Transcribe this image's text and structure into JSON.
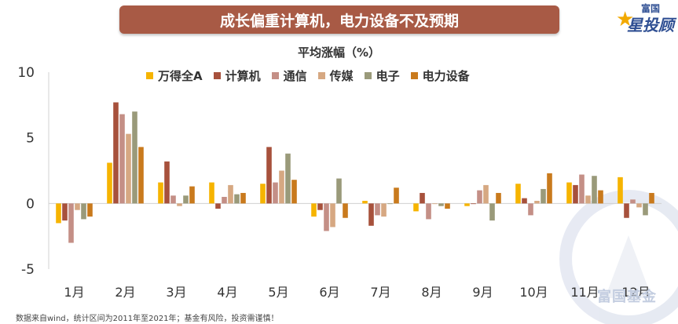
{
  "banner": {
    "title": "成长偏重计算机，电力设备不及预期"
  },
  "logo": {
    "top": "富国",
    "main": "星投顾"
  },
  "footnote": "数据来自wind，统计区间为2011年至2021年；基金有风险，投资需谨慎！",
  "watermark": "富国基金",
  "chart_data": {
    "type": "bar",
    "title": "平均涨幅（%）",
    "categories": [
      "1月",
      "2月",
      "3月",
      "4月",
      "5月",
      "6月",
      "7月",
      "8月",
      "9月",
      "10月",
      "11月",
      "12月"
    ],
    "ylim": [
      -5,
      10
    ],
    "yticks": [
      "10",
      "5",
      "0",
      "-5"
    ],
    "ytick_values": [
      10,
      5,
      0,
      -5
    ],
    "legend_position": "top",
    "grid": false,
    "series": [
      {
        "name": "万得全A",
        "color": "#f6b400",
        "values": [
          -1.5,
          3.1,
          1.6,
          1.6,
          1.5,
          -1.0,
          0.2,
          -0.6,
          -0.2,
          1.5,
          1.6,
          2.0
        ]
      },
      {
        "name": "计算机",
        "color": "#a7513c",
        "values": [
          -1.3,
          7.7,
          3.2,
          -0.4,
          4.3,
          -0.5,
          -1.7,
          0.8,
          0.0,
          0.4,
          1.4,
          -1.1
        ]
      },
      {
        "name": "通信",
        "color": "#c48f86",
        "values": [
          -3.0,
          6.8,
          0.6,
          0.5,
          1.6,
          -2.1,
          -0.9,
          -1.2,
          1.0,
          -0.9,
          2.2,
          0.3
        ]
      },
      {
        "name": "传媒",
        "color": "#d6a882",
        "values": [
          -0.5,
          5.3,
          -0.2,
          1.4,
          2.5,
          -1.8,
          -1.0,
          0.0,
          1.4,
          0.2,
          0.6,
          -0.3
        ]
      },
      {
        "name": "电子",
        "color": "#9a9a7a",
        "values": [
          -1.2,
          7.0,
          0.6,
          0.7,
          3.8,
          1.9,
          0.0,
          -0.2,
          -1.3,
          1.1,
          2.1,
          -0.9
        ]
      },
      {
        "name": "电力设备",
        "color": "#c97a1d",
        "values": [
          -1.0,
          4.3,
          1.3,
          0.8,
          1.8,
          -1.1,
          1.2,
          -0.4,
          0.8,
          2.3,
          1.0,
          0.8
        ]
      }
    ]
  }
}
